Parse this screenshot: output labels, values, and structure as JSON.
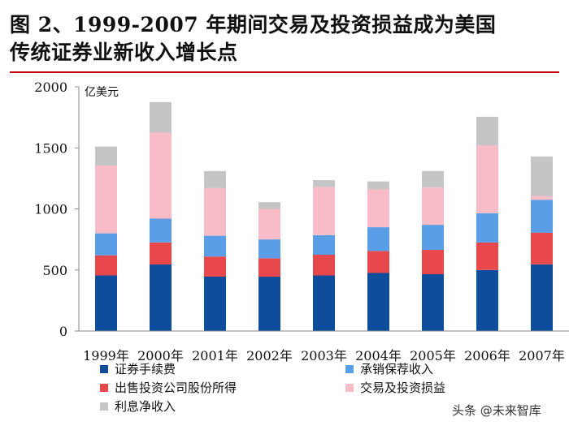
{
  "title": {
    "line1": "图 2、1999-2007 年期间交易及投资损益成为美国",
    "line2": "传统证券业新收入增长点"
  },
  "watermark": "头条 @未来智库",
  "colors": {
    "title_rule": "#c00000",
    "series": [
      "#0e4d9c",
      "#e8474b",
      "#5b9ee8",
      "#f7bcc8",
      "#c5c5c5"
    ]
  },
  "chart_data": {
    "type": "bar",
    "stacked": true,
    "unit_label": "亿美元",
    "categories": [
      "1999年",
      "2000年",
      "2001年",
      "2002年",
      "2003年",
      "2004年",
      "2005年",
      "2006年",
      "2007年"
    ],
    "ylim": [
      0,
      2000
    ],
    "yticks": [
      0,
      500,
      1000,
      1500,
      2000
    ],
    "grid": false,
    "legend_position": "bottom",
    "series": [
      {
        "name": "证券手续费",
        "values": [
          455,
          545,
          445,
          445,
          455,
          475,
          465,
          500,
          545
        ]
      },
      {
        "name": "出售投资公司股份所得",
        "values": [
          165,
          180,
          165,
          150,
          170,
          180,
          200,
          225,
          260
        ]
      },
      {
        "name": "承销保荐收入",
        "values": [
          180,
          195,
          170,
          155,
          160,
          195,
          205,
          240,
          270
        ]
      },
      {
        "name": "交易及投资损益",
        "values": [
          555,
          705,
          390,
          250,
          395,
          310,
          305,
          555,
          30
        ]
      },
      {
        "name": "利息净收入",
        "values": [
          155,
          250,
          140,
          55,
          55,
          65,
          135,
          235,
          325
        ]
      }
    ]
  }
}
